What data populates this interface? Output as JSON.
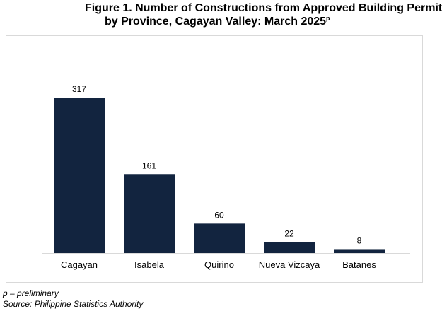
{
  "title": {
    "line1": "Figure 1. Number of Constructions from Approved Building Permit",
    "line2": "by Province, Cagayan Valley: March 2025",
    "superscript": "p"
  },
  "chart_data": {
    "type": "bar",
    "categories": [
      "Cagayan",
      "Isabela",
      "Quirino",
      "Nueva Vizcaya",
      "Batanes"
    ],
    "values": [
      317,
      161,
      60,
      22,
      8
    ],
    "data_labels": [
      "317",
      "161",
      "60",
      "22",
      "8"
    ],
    "title": "Figure 1. Number of Constructions from Approved Building Permit by Province, Cagayan Valley: March 2025p",
    "xlabel": "",
    "ylabel": "",
    "ylim": [
      0,
      317
    ],
    "grid": false,
    "legend": "none",
    "bar_color": "#12243f"
  },
  "notes": {
    "preliminary": "p – preliminary",
    "source": "Source: Philippine Statistics Authority"
  }
}
